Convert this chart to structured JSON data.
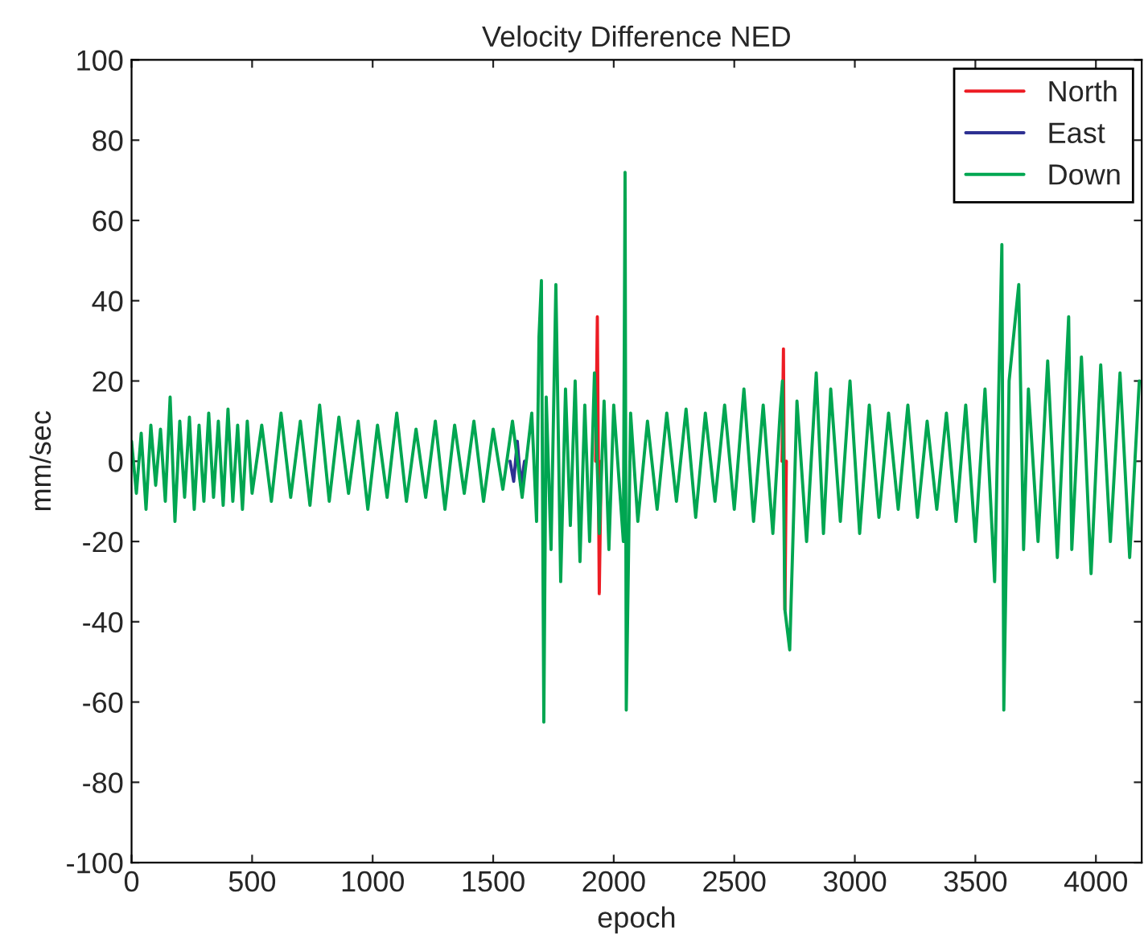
{
  "chart_data": {
    "type": "line",
    "title": "Velocity Difference NED",
    "xlabel": "epoch",
    "ylabel": "mm/sec",
    "xlim": [
      0,
      4190
    ],
    "xticks": [
      0,
      500,
      1000,
      1500,
      2000,
      2500,
      3000,
      3500,
      4000
    ],
    "ylim": [
      -100,
      100
    ],
    "yticks": [
      -100,
      -80,
      -60,
      -40,
      -20,
      0,
      20,
      40,
      60,
      80,
      100
    ],
    "grid": false,
    "legend": "top right",
    "marker": "none",
    "line_style": "solid",
    "series": [
      {
        "name": "North",
        "color": "#ed1c24",
        "x": [
          1925,
          1932,
          1940,
          1948,
          2300,
          2698,
          2704,
          2710,
          2716
        ],
        "values": [
          0,
          36,
          -33,
          0,
          null,
          0,
          28,
          -37,
          0
        ]
      },
      {
        "name": "East",
        "color": "#2e3192",
        "x": [
          1570,
          1585,
          1600,
          1615,
          1630
        ],
        "values": [
          0,
          -5,
          5,
          -6,
          0
        ]
      },
      {
        "name": "Down",
        "color": "#00a651",
        "x": [
          0,
          20,
          40,
          60,
          80,
          100,
          120,
          140,
          160,
          180,
          200,
          220,
          240,
          260,
          280,
          300,
          320,
          340,
          360,
          380,
          400,
          420,
          440,
          460,
          480,
          500,
          540,
          580,
          620,
          660,
          700,
          740,
          780,
          820,
          860,
          900,
          940,
          980,
          1020,
          1060,
          1100,
          1140,
          1180,
          1220,
          1260,
          1300,
          1340,
          1380,
          1420,
          1460,
          1500,
          1540,
          1580,
          1620,
          1660,
          1680,
          1690,
          1700,
          1710,
          1720,
          1740,
          1760,
          1780,
          1800,
          1820,
          1840,
          1860,
          1880,
          1900,
          1920,
          1940,
          1960,
          1980,
          2000,
          2040,
          2047,
          2052,
          2070,
          2100,
          2140,
          2180,
          2220,
          2260,
          2300,
          2340,
          2380,
          2420,
          2460,
          2500,
          2540,
          2580,
          2620,
          2660,
          2690,
          2700,
          2710,
          2730,
          2760,
          2800,
          2840,
          2870,
          2900,
          2940,
          2980,
          3020,
          3060,
          3100,
          3140,
          3180,
          3220,
          3260,
          3300,
          3340,
          3380,
          3420,
          3460,
          3500,
          3540,
          3580,
          3610,
          3618,
          3640,
          3680,
          3700,
          3720,
          3760,
          3800,
          3840,
          3887,
          3900,
          3940,
          3980,
          4020,
          4060,
          4100,
          4140,
          4180
        ],
        "values": [
          5,
          -8,
          7,
          -12,
          9,
          -6,
          8,
          -10,
          16,
          -15,
          10,
          -9,
          11,
          -12,
          9,
          -10,
          12,
          -9,
          10,
          -11,
          13,
          -10,
          9,
          -12,
          10,
          -8,
          9,
          -10,
          12,
          -9,
          10,
          -11,
          14,
          -10,
          11,
          -8,
          10,
          -12,
          9,
          -9,
          12,
          -10,
          8,
          -9,
          10,
          -12,
          9,
          -8,
          10,
          -10,
          8,
          -7,
          10,
          -9,
          12,
          -15,
          31,
          45,
          -65,
          16,
          -22,
          44,
          -30,
          18,
          -16,
          20,
          -25,
          14,
          -20,
          22,
          -18,
          15,
          -22,
          14,
          -20,
          72,
          -62,
          12,
          -15,
          10,
          -12,
          12,
          -10,
          13,
          -14,
          12,
          -10,
          14,
          -12,
          18,
          -15,
          14,
          -18,
          12,
          20,
          -37,
          -47,
          15,
          -20,
          22,
          -18,
          18,
          -15,
          20,
          -18,
          14,
          -14,
          12,
          -12,
          14,
          -14,
          10,
          -12,
          12,
          -15,
          14,
          -20,
          18,
          -30,
          54,
          -62,
          20,
          44,
          -22,
          18,
          -20,
          25,
          -24,
          36,
          -22,
          26,
          -28,
          24,
          -20,
          22,
          -24,
          20
        ]
      }
    ]
  }
}
